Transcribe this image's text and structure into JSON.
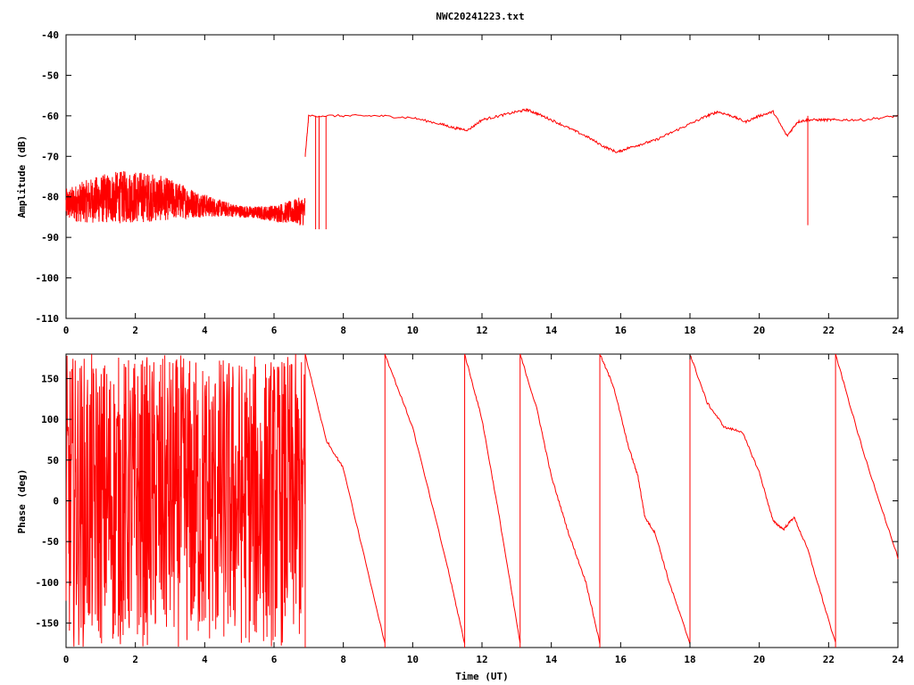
{
  "chart_data": [
    {
      "type": "line",
      "title": "NWC20241223.txt",
      "xlabel": "",
      "ylabel": "Amplitude (dB)",
      "xlim": [
        0,
        24
      ],
      "ylim": [
        -110,
        -40
      ],
      "xticks": [
        "0",
        "2",
        "4",
        "6",
        "8",
        "10",
        "12",
        "14",
        "16",
        "18",
        "20",
        "22",
        "24"
      ],
      "yticks": [
        "-40",
        "-50",
        "-60",
        "-70",
        "-80",
        "-90",
        "-100",
        "-110"
      ],
      "grid": false,
      "series_color": "#ff0000",
      "series": [
        {
          "noise_segment": {
            "x_range": [
              0,
              6.9
            ],
            "y_center": -82,
            "y_range": [
              -89,
              -73
            ]
          },
          "x": [
            6.9,
            7.0,
            8.0,
            9.0,
            10.0,
            10.8,
            11.2,
            11.6,
            12.0,
            12.5,
            13.0,
            13.3,
            13.6,
            14.0,
            14.5,
            15.0,
            15.5,
            15.9,
            16.2,
            16.6,
            17.0,
            17.5,
            18.0,
            18.5,
            18.8,
            19.2,
            19.6,
            20.0,
            20.4,
            20.8,
            21.1,
            21.4,
            21.8,
            22.2,
            23.0,
            24.0
          ],
          "y": [
            -70,
            -60,
            -60,
            -60,
            -60.5,
            -62,
            -63,
            -63.5,
            -61,
            -60,
            -59,
            -58.5,
            -59.5,
            -61,
            -63,
            -65,
            -67.5,
            -69,
            -68,
            -67,
            -66,
            -64,
            -62,
            -60,
            -59,
            -60,
            -61.5,
            -60,
            -59,
            -65,
            -61.5,
            -61,
            -61,
            -61,
            -61,
            -60
          ],
          "spikes": [
            {
              "x": 7.2,
              "y": -88
            },
            {
              "x": 7.3,
              "y": -88
            },
            {
              "x": 7.5,
              "y": -88
            },
            {
              "x": 21.4,
              "y": -87
            }
          ]
        }
      ]
    },
    {
      "type": "line",
      "title": "",
      "xlabel": "Time (UT)",
      "ylabel": "Phase (deg)",
      "xlim": [
        0,
        24
      ],
      "ylim": [
        -180,
        180
      ],
      "xticks": [
        "0",
        "2",
        "4",
        "6",
        "8",
        "10",
        "12",
        "14",
        "16",
        "18",
        "20",
        "22",
        "24"
      ],
      "yticks": [
        "150",
        "100",
        "50",
        "0",
        "-50",
        "-100",
        "-150"
      ],
      "grid": false,
      "series_color": "#ff0000",
      "series": [
        {
          "noise_segment": {
            "x_range": [
              0,
              6.9
            ],
            "y_range": [
              -180,
              180
            ]
          },
          "segments": [
            {
              "x": [
                6.9,
                7.5,
                8.0,
                9.2
              ],
              "y": [
                180,
                75,
                40,
                -175
              ]
            },
            {
              "x": [
                9.2,
                10.0,
                11.0,
                11.5
              ],
              "y": [
                180,
                90,
                -80,
                -175
              ]
            },
            {
              "x": [
                11.5,
                12.0,
                12.5,
                13.1
              ],
              "y": [
                180,
                100,
                -20,
                -175
              ]
            },
            {
              "x": [
                13.1,
                13.6,
                14.0,
                14.5,
                15.0,
                15.4
              ],
              "y": [
                180,
                110,
                30,
                -40,
                -100,
                -175
              ]
            },
            {
              "x": [
                15.4,
                15.8,
                16.2,
                16.5,
                16.7,
                17.0,
                17.4,
                18.0
              ],
              "y": [
                180,
                140,
                70,
                30,
                -20,
                -40,
                -100,
                -175
              ]
            },
            {
              "x": [
                18.0,
                18.5,
                19.0,
                19.5,
                20.0,
                20.4,
                20.7,
                21.0,
                21.4,
                22.2
              ],
              "y": [
                180,
                120,
                90,
                85,
                35,
                -25,
                -35,
                -20,
                -60,
                -175
              ]
            },
            {
              "x": [
                22.2,
                23.0,
                24.0
              ],
              "y": [
                180,
                60,
                -70
              ]
            }
          ]
        }
      ]
    }
  ]
}
